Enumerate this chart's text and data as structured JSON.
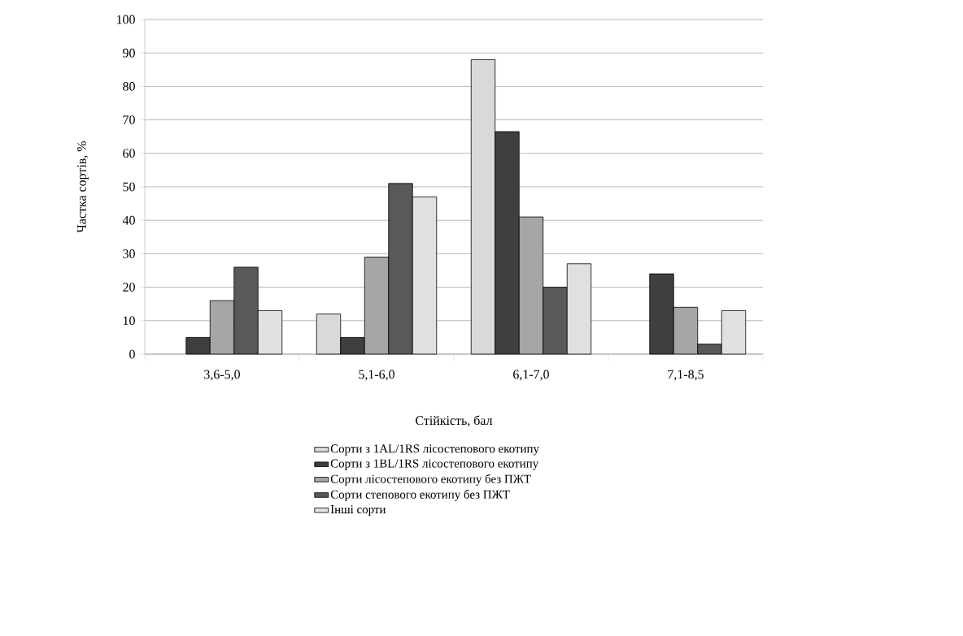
{
  "chart_data": {
    "type": "bar",
    "xlabel": "Стійкість, бал",
    "ylabel": "Частка  сортів, %",
    "categories": [
      "3,6-5,0",
      "5,1-6,0",
      "6,1-7,0",
      "7,1-8,5"
    ],
    "series": [
      {
        "name": "Сорти з 1AL/1RS лісостепового екотипу",
        "color": "#d9d9d9",
        "values": [
          null,
          12,
          88,
          null
        ]
      },
      {
        "name": "Сорти з 1BL/1RS лісостепового екотипу",
        "color": "#3f3f3f",
        "values": [
          5,
          5,
          66.5,
          24
        ]
      },
      {
        "name": "Сорти лісостепового екотипу без ПЖТ",
        "color": "#a6a6a6",
        "values": [
          16,
          29,
          41,
          14
        ]
      },
      {
        "name": "Сорти  степового екотипу без ПЖТ",
        "color": "#595959",
        "values": [
          26,
          51,
          20,
          3
        ]
      },
      {
        "name": "Інші сорти",
        "color": "#e0e0e0",
        "values": [
          13,
          47,
          27,
          13
        ]
      }
    ],
    "ylim": [
      0,
      100
    ],
    "yticks": [
      0,
      10,
      20,
      30,
      40,
      50,
      60,
      70,
      80,
      90,
      100
    ],
    "grid": "y",
    "legend": "bottom"
  }
}
